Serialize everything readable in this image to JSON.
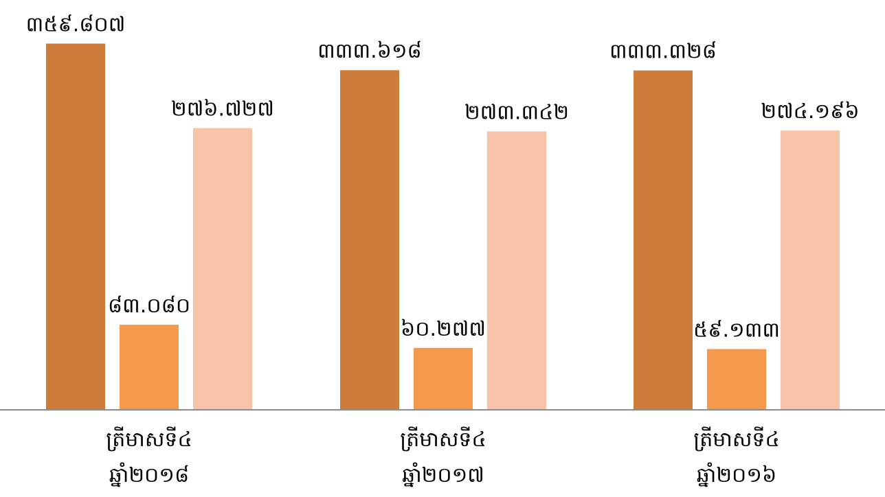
{
  "chart_data": {
    "type": "bar",
    "title": "",
    "xlabel": "",
    "ylabel": "",
    "ylim": [
      0,
      400
    ],
    "grid": false,
    "legend": "none",
    "categories": [
      {
        "line1": "ត្រីមាសទី៤",
        "line2": "ឆ្នាំ២០១៨"
      },
      {
        "line1": "ត្រីមាសទី៤",
        "line2": "ឆ្នាំ២០១៧"
      },
      {
        "line1": "ត្រីមាសទី៤",
        "line2": "ឆ្នាំ២០១៦"
      }
    ],
    "series": [
      {
        "color": "#cd7c3a",
        "values": [
          359.807,
          333.618,
          333.328
        ],
        "labels": [
          "៣៥៩.៨០៧",
          "៣៣៣.៦១៨",
          "៣៣៣.៣២៨"
        ]
      },
      {
        "color": "#f59a4a",
        "values": [
          83.08,
          60.277,
          59.133
        ],
        "labels": [
          "៨៣.០៨០",
          "៦០.២៧៧",
          "៥៩.១៣៣"
        ]
      },
      {
        "color": "#f8c3a8",
        "values": [
          276.727,
          273.342,
          274.196
        ],
        "labels": [
          "២៧៦.៧២៧",
          "២៧៣.៣៤២",
          "២៧៤.១៩៦"
        ]
      }
    ]
  }
}
